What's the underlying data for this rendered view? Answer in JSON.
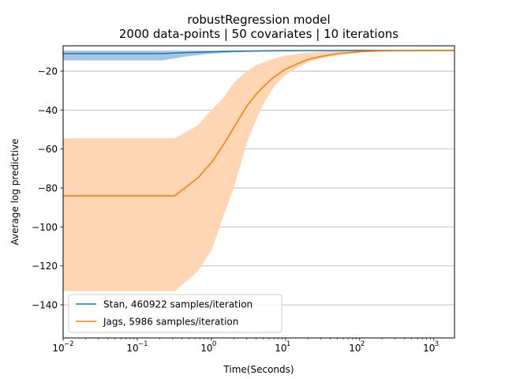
{
  "chart_data": {
    "type": "line",
    "title": "robustRegression model",
    "subtitle": "2000 data-points | 50 covariates | 10 iterations",
    "xlabel": "Time(Seconds)",
    "ylabel": "Average log predictive",
    "xscale": "log",
    "xlim": [
      0.01,
      1900
    ],
    "ylim": [
      -157,
      -7
    ],
    "x_ticks": [
      {
        "base": "10",
        "exp": "−2",
        "value": 0.01
      },
      {
        "base": "10",
        "exp": "−1",
        "value": 0.1
      },
      {
        "base": "10",
        "exp": "0",
        "value": 1
      },
      {
        "base": "10",
        "exp": "1",
        "value": 10
      },
      {
        "base": "10",
        "exp": "2",
        "value": 100
      },
      {
        "base": "10",
        "exp": "3",
        "value": 1000
      }
    ],
    "y_ticks": [
      {
        "label": "−20",
        "value": -20
      },
      {
        "label": "−40",
        "value": -40
      },
      {
        "label": "−60",
        "value": -60
      },
      {
        "label": "−80",
        "value": -80
      },
      {
        "label": "−100",
        "value": -100
      },
      {
        "label": "−120",
        "value": -120
      },
      {
        "label": "−140",
        "value": -140
      }
    ],
    "grid": "horizontal",
    "legend_position": "lower-left",
    "series": [
      {
        "name": "Stan, 460922 samples/iteration",
        "color": "#1f77b4",
        "band_color": "#a6c5e4",
        "x": [
          0.01,
          0.22,
          0.45,
          1,
          2,
          5,
          10,
          100,
          1900
        ],
        "y": [
          -11,
          -11,
          -10.5,
          -10.1,
          -9.8,
          -9.6,
          -9.5,
          -9.4,
          -9.4
        ],
        "lower": [
          -14.5,
          -14.5,
          -12.5,
          -11,
          -10.3,
          -9.9,
          -9.7,
          -9.5,
          -9.4
        ],
        "upper": [
          -9.5,
          -9.5,
          -9.5,
          -9.5,
          -9.4,
          -9.4,
          -9.4,
          -9.4,
          -9.4
        ]
      },
      {
        "name": "Jags, 5986 samples/iteration",
        "color": "#ff7f0e",
        "band_color": "#ffd6b3",
        "x": [
          0.01,
          0.32,
          0.65,
          1,
          1.5,
          2,
          3,
          4,
          5,
          7,
          10,
          15,
          20,
          30,
          50,
          100,
          200,
          400,
          1000,
          1900
        ],
        "y": [
          -84,
          -84,
          -75,
          -67,
          -57,
          -49,
          -38,
          -32,
          -28,
          -23,
          -19,
          -16,
          -14,
          -12.5,
          -11,
          -10,
          -9.6,
          -9.5,
          -9.4,
          -9.4
        ],
        "lower": [
          -133,
          -133,
          -123,
          -112,
          -93,
          -80,
          -57,
          -45,
          -37,
          -28,
          -22,
          -18,
          -15.5,
          -13.5,
          -12,
          -10.5,
          -9.8,
          -9.6,
          -9.5,
          -9.4
        ],
        "upper": [
          -54.5,
          -54.5,
          -48,
          -40,
          -33,
          -26,
          -20,
          -17,
          -15.5,
          -13.5,
          -12,
          -11,
          -10.5,
          -10,
          -9.7,
          -9.5,
          -9.4,
          -9.4,
          -9.4,
          -9.4
        ]
      }
    ]
  }
}
